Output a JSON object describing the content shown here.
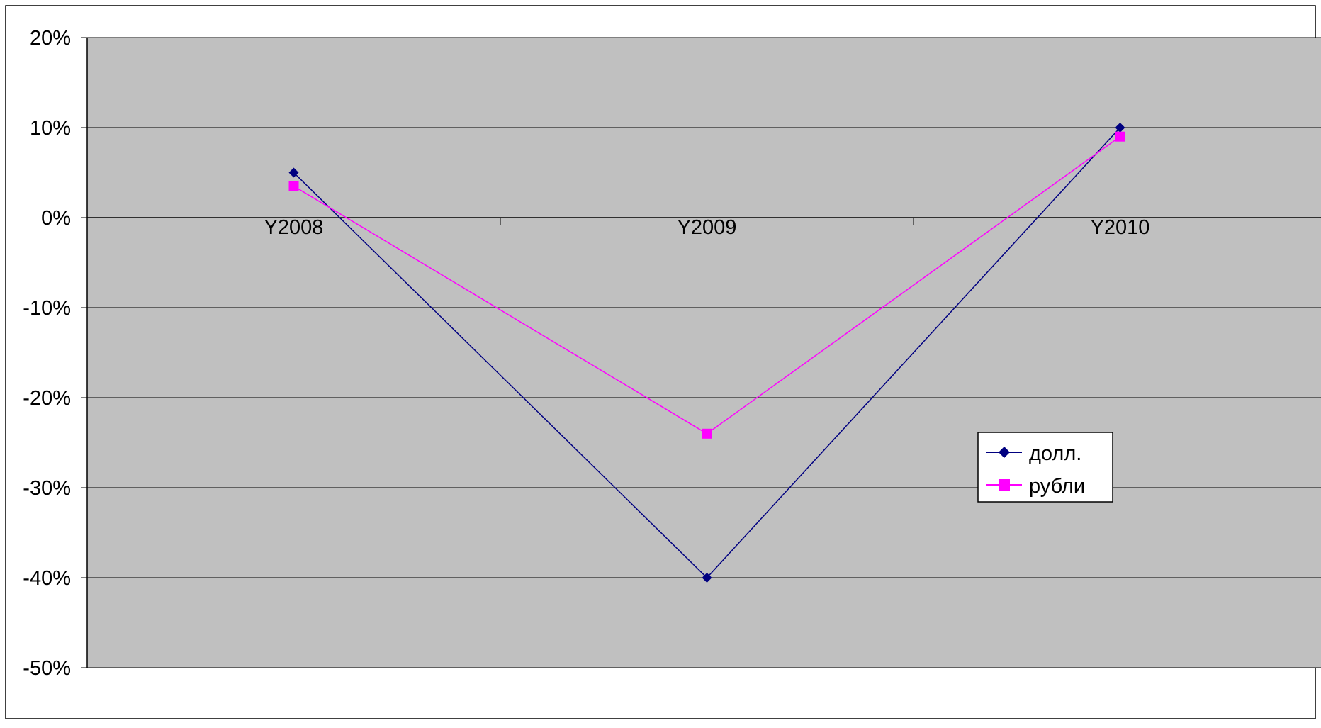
{
  "chart_data": {
    "type": "line",
    "title": "",
    "xlabel": "",
    "ylabel": "",
    "categories": [
      "Y2008",
      "Y2009",
      "Y2010"
    ],
    "y_ticks": [
      "20%",
      "10%",
      "0%",
      "-10%",
      "-20%",
      "-30%",
      "-40%",
      "-50%"
    ],
    "y_tick_values": [
      20,
      10,
      0,
      -10,
      -20,
      -30,
      -40,
      -50
    ],
    "ylim": [
      -50,
      20
    ],
    "grid": true,
    "legend_position": "right",
    "plot_background": "#c0c0c0",
    "series": [
      {
        "name": "долл.",
        "values": [
          5,
          -40,
          10
        ],
        "color": "#000080",
        "marker": "diamond"
      },
      {
        "name": "рубли",
        "values": [
          3.5,
          -24,
          9
        ],
        "color": "#ff00ff",
        "marker": "square"
      }
    ]
  }
}
